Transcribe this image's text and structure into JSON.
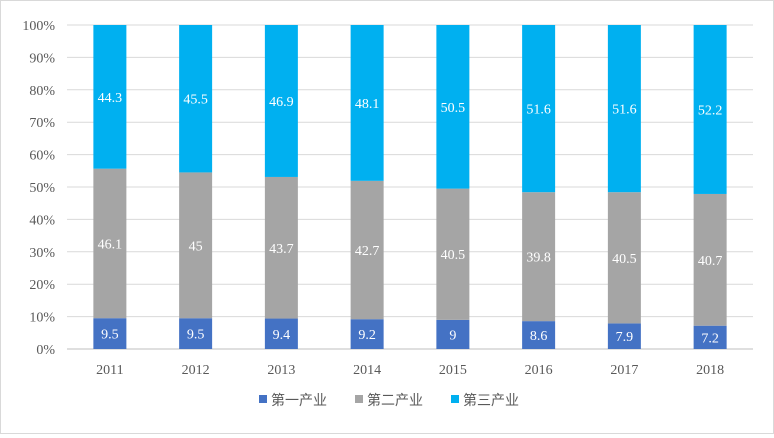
{
  "chart_data": {
    "type": "bar",
    "stacked": "percent",
    "categories": [
      "2011",
      "2012",
      "2013",
      "2014",
      "2015",
      "2016",
      "2017",
      "2018"
    ],
    "series": [
      {
        "name": "第一产业",
        "color": "#4472c4",
        "values": [
          9.5,
          9.5,
          9.4,
          9.2,
          9,
          8.6,
          7.9,
          7.2
        ]
      },
      {
        "name": "第二产业",
        "color": "#a5a5a5",
        "values": [
          46.1,
          45,
          43.7,
          42.7,
          40.5,
          39.8,
          40.5,
          40.7
        ]
      },
      {
        "name": "第三产业",
        "color": "#00b0f0",
        "values": [
          44.3,
          45.5,
          46.9,
          48.1,
          50.5,
          51.6,
          51.6,
          52.2
        ]
      }
    ],
    "y_ticks": [
      "0%",
      "10%",
      "20%",
      "30%",
      "40%",
      "50%",
      "60%",
      "70%",
      "80%",
      "90%",
      "100%"
    ],
    "ylim": [
      0,
      100
    ],
    "grid": true,
    "legend_position": "bottom"
  }
}
